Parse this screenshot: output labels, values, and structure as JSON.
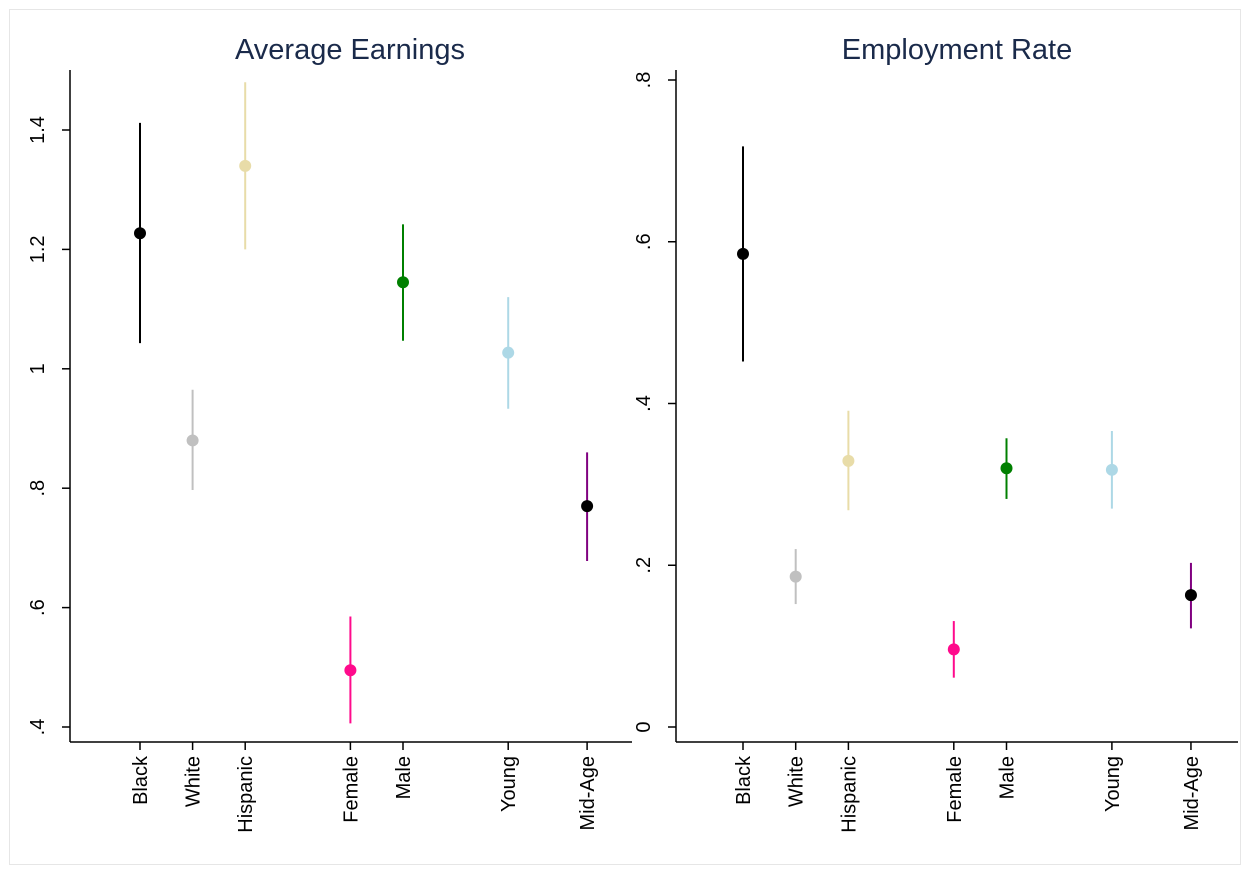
{
  "chart_data": [
    {
      "type": "scatter",
      "title": "Average Earnings",
      "xlabel": "",
      "ylabel": "",
      "ylim": [
        0.4,
        1.5
      ],
      "yticks": [
        ".4",
        ".6",
        ".8",
        "1",
        "1.2",
        "1.4"
      ],
      "ytick_values": [
        0.4,
        0.6,
        0.8,
        1.0,
        1.2,
        1.4
      ],
      "grid": false,
      "categories": [
        "Black",
        "White",
        "Hispanic",
        "Female",
        "Male",
        "Young",
        "Mid-Age"
      ],
      "x_positions": [
        1,
        2,
        3,
        5,
        6,
        8,
        9.5
      ],
      "estimates": [
        1.227,
        0.88,
        1.34,
        0.495,
        1.145,
        1.027,
        0.77
      ],
      "ci_low": [
        1.043,
        0.797,
        1.2,
        0.406,
        1.047,
        0.933,
        0.678
      ],
      "ci_high": [
        1.412,
        0.965,
        1.48,
        0.585,
        1.242,
        1.12,
        0.86
      ],
      "colors": [
        "#000000",
        "#c0c0c0",
        "#e8dca8",
        "#ff0a8c",
        "#008000",
        "#add8e6",
        "#800080"
      ],
      "point_colors": [
        "#000000",
        "#c0c0c0",
        "#e8dca8",
        "#ff0a8c",
        "#008000",
        "#add8e6",
        "#000000"
      ]
    },
    {
      "type": "scatter",
      "title": "Employment Rate",
      "xlabel": "",
      "ylabel": "",
      "ylim": [
        0,
        0.8
      ],
      "yticks": [
        "0",
        ".2",
        ".4",
        ".6",
        ".8"
      ],
      "ytick_values": [
        0,
        0.2,
        0.4,
        0.6,
        0.8
      ],
      "grid": false,
      "categories": [
        "Black",
        "White",
        "Hispanic",
        "Female",
        "Male",
        "Young",
        "Mid-Age"
      ],
      "x_positions": [
        1,
        2,
        3,
        5,
        6,
        8,
        9.5
      ],
      "estimates": [
        0.585,
        0.186,
        0.329,
        0.096,
        0.32,
        0.318,
        0.163
      ],
      "ci_low": [
        0.452,
        0.152,
        0.268,
        0.061,
        0.282,
        0.27,
        0.122
      ],
      "ci_high": [
        0.718,
        0.22,
        0.391,
        0.131,
        0.357,
        0.366,
        0.203
      ],
      "colors": [
        "#000000",
        "#c0c0c0",
        "#e8dca8",
        "#ff0a8c",
        "#008000",
        "#add8e6",
        "#800080"
      ],
      "point_colors": [
        "#000000",
        "#c0c0c0",
        "#e8dca8",
        "#ff0a8c",
        "#008000",
        "#add8e6",
        "#000000"
      ]
    }
  ],
  "colors": {
    "background": "#ffffff",
    "title": "#1a2a4a",
    "axis": "#000000",
    "border": "#e6e6e6"
  }
}
